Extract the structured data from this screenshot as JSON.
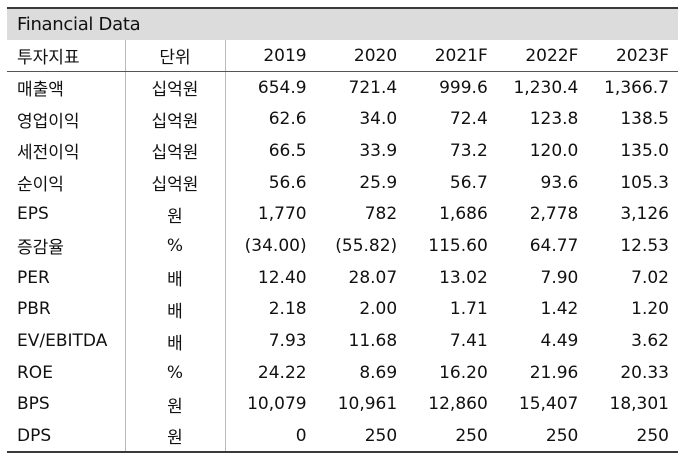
{
  "title": "Financial Data",
  "headers": [
    "투자지표",
    "단위",
    "2019",
    "2020",
    "2021F",
    "2022F",
    "2023F"
  ],
  "rows": [
    {
      "label": "매출액",
      "unit": "십억원",
      "values": [
        "654.9",
        "721.4",
        "999.6",
        "1,230.4",
        "1,366.7"
      ]
    },
    {
      "label": "영업이익",
      "unit": "십억원",
      "values": [
        "62.6",
        "34.0",
        "72.4",
        "123.8",
        "138.5"
      ]
    },
    {
      "label": "세전이익",
      "unit": "십억원",
      "values": [
        "66.5",
        "33.9",
        "73.2",
        "120.0",
        "135.0"
      ]
    },
    {
      "label": "순이익",
      "unit": "십억원",
      "values": [
        "56.6",
        "25.9",
        "56.7",
        "93.6",
        "105.3"
      ]
    },
    {
      "label": "EPS",
      "unit": "원",
      "values": [
        "1,770",
        "782",
        "1,686",
        "2,778",
        "3,126"
      ]
    },
    {
      "label": "증감율",
      "unit": "%",
      "values": [
        "(34.00)",
        "(55.82)",
        "115.60",
        "64.77",
        "12.53"
      ]
    },
    {
      "label": "PER",
      "unit": "배",
      "values": [
        "12.40",
        "28.07",
        "13.02",
        "7.90",
        "7.02"
      ]
    },
    {
      "label": "PBR",
      "unit": "배",
      "values": [
        "2.18",
        "2.00",
        "1.71",
        "1.42",
        "1.20"
      ]
    },
    {
      "label": "EV/EBITDA",
      "unit": "배",
      "values": [
        "7.93",
        "11.68",
        "7.41",
        "4.49",
        "3.62"
      ]
    },
    {
      "label": "ROE",
      "unit": "%",
      "values": [
        "24.22",
        "8.69",
        "16.20",
        "21.96",
        "20.33"
      ]
    },
    {
      "label": "BPS",
      "unit": "원",
      "values": [
        "10,079",
        "10,961",
        "12,860",
        "15,407",
        "18,301"
      ]
    },
    {
      "label": "DPS",
      "unit": "원",
      "values": [
        "0",
        "250",
        "250",
        "250",
        "250"
      ]
    }
  ]
}
